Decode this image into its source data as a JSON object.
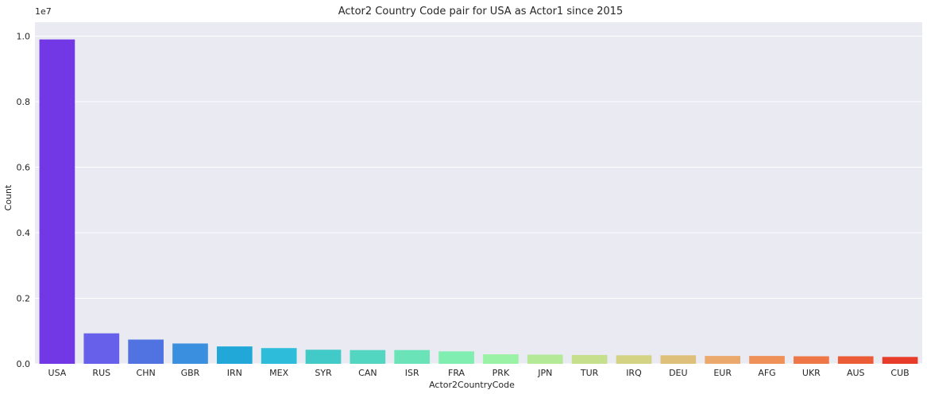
{
  "chart_data": {
    "type": "bar",
    "title": "Actor2 Country Code pair for USA as Actor1 since 2015",
    "xlabel": "Actor2CountryCode",
    "ylabel": "Count",
    "y_offset_label": "1e7",
    "y_scale": 10000000,
    "ylim": [
      0,
      1.0425
    ],
    "y_ticks": [
      0.0,
      0.2,
      0.4,
      0.6,
      0.8,
      1.0
    ],
    "y_tick_labels": [
      "0.0",
      "0.2",
      "0.4",
      "0.6",
      "0.8",
      "1.0"
    ],
    "grid": true,
    "categories": [
      "USA",
      "RUS",
      "CHN",
      "GBR",
      "IRN",
      "MEX",
      "SYR",
      "CAN",
      "ISR",
      "FRA",
      "PRK",
      "JPN",
      "TUR",
      "IRQ",
      "DEU",
      "EUR",
      "AFG",
      "UKR",
      "AUS",
      "CUB"
    ],
    "values": [
      9900000,
      930000,
      740000,
      620000,
      530000,
      480000,
      430000,
      420000,
      420000,
      380000,
      290000,
      280000,
      270000,
      260000,
      260000,
      240000,
      240000,
      230000,
      230000,
      210000
    ],
    "colors": [
      "#7338e6",
      "#6760ea",
      "#5173e2",
      "#3a8fdf",
      "#21a7d8",
      "#2dbddb",
      "#42cac8",
      "#52d6c2",
      "#6ae3b8",
      "#80eeb0",
      "#9af2a6",
      "#b4ea97",
      "#c6df8c",
      "#d4d283",
      "#dfc07b",
      "#eba86c",
      "#ef9058",
      "#ef7647",
      "#eb5b36",
      "#e73c2a"
    ]
  }
}
